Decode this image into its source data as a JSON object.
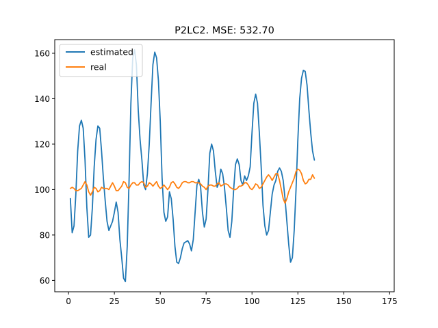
{
  "chart_data": {
    "type": "line",
    "title": "P2LC2. MSE: 532.70",
    "xlabel": "",
    "ylabel": "",
    "xlim": [
      -7.5,
      177.5
    ],
    "ylim": [
      55,
      166
    ],
    "xticks": [
      0,
      25,
      50,
      75,
      100,
      125,
      150,
      175
    ],
    "yticks": [
      60,
      80,
      100,
      120,
      140,
      160
    ],
    "grid": false,
    "legend_position": "upper left",
    "series": [
      {
        "name": "estimated",
        "color": "#1f77b4",
        "points": [
          [
            1,
            96
          ],
          [
            2,
            81
          ],
          [
            3,
            84
          ],
          [
            4,
            98
          ],
          [
            5,
            117
          ],
          [
            6,
            128
          ],
          [
            7,
            130.5
          ],
          [
            8,
            127
          ],
          [
            9,
            113
          ],
          [
            10,
            92
          ],
          [
            11,
            79
          ],
          [
            12,
            80
          ],
          [
            13,
            92
          ],
          [
            14,
            110
          ],
          [
            15,
            122
          ],
          [
            16,
            128
          ],
          [
            17,
            127
          ],
          [
            18,
            117
          ],
          [
            19,
            105
          ],
          [
            20,
            95
          ],
          [
            21,
            86
          ],
          [
            22,
            82
          ],
          [
            23,
            84
          ],
          [
            24,
            86
          ],
          [
            25,
            90
          ],
          [
            26,
            94.5
          ],
          [
            27,
            90
          ],
          [
            28,
            78
          ],
          [
            29,
            70
          ],
          [
            30,
            61
          ],
          [
            31,
            59.5
          ],
          [
            32,
            75
          ],
          [
            33,
            104
          ],
          [
            34,
            138
          ],
          [
            35,
            158
          ],
          [
            36,
            161.5
          ],
          [
            37,
            155
          ],
          [
            38,
            135
          ],
          [
            39,
            122
          ],
          [
            40,
            113
          ],
          [
            41,
            102
          ],
          [
            42,
            100
          ],
          [
            43,
            107
          ],
          [
            44,
            120
          ],
          [
            45,
            138
          ],
          [
            46,
            155
          ],
          [
            47,
            160.5
          ],
          [
            48,
            158
          ],
          [
            49,
            148
          ],
          [
            50,
            130
          ],
          [
            51,
            105
          ],
          [
            52,
            90
          ],
          [
            53,
            86
          ],
          [
            54,
            88
          ],
          [
            55,
            99
          ],
          [
            56,
            96
          ],
          [
            57,
            87
          ],
          [
            58,
            75
          ],
          [
            59,
            68
          ],
          [
            60,
            67.5
          ],
          [
            61,
            70
          ],
          [
            62,
            74
          ],
          [
            63,
            76.5
          ],
          [
            64,
            77
          ],
          [
            65,
            77.5
          ],
          [
            66,
            76
          ],
          [
            67,
            73
          ],
          [
            68,
            78
          ],
          [
            69,
            90
          ],
          [
            70,
            102
          ],
          [
            71,
            104.5
          ],
          [
            72,
            101
          ],
          [
            73,
            90
          ],
          [
            74,
            83.5
          ],
          [
            75,
            87
          ],
          [
            76,
            100
          ],
          [
            77,
            116
          ],
          [
            78,
            120
          ],
          [
            79,
            117
          ],
          [
            80,
            108
          ],
          [
            81,
            101
          ],
          [
            82,
            103
          ],
          [
            83,
            109
          ],
          [
            84,
            107
          ],
          [
            85,
            101
          ],
          [
            86,
            92
          ],
          [
            87,
            82
          ],
          [
            88,
            79
          ],
          [
            89,
            86
          ],
          [
            90,
            100
          ],
          [
            91,
            111
          ],
          [
            92,
            113.5
          ],
          [
            93,
            111
          ],
          [
            94,
            104
          ],
          [
            95,
            102
          ],
          [
            96,
            106
          ],
          [
            97,
            104
          ],
          [
            98,
            106
          ],
          [
            99,
            110
          ],
          [
            100,
            125
          ],
          [
            101,
            138
          ],
          [
            102,
            142
          ],
          [
            103,
            138
          ],
          [
            104,
            125
          ],
          [
            105,
            110
          ],
          [
            106,
            93
          ],
          [
            107,
            84
          ],
          [
            108,
            80
          ],
          [
            109,
            82
          ],
          [
            110,
            90
          ],
          [
            111,
            98
          ],
          [
            112,
            102
          ],
          [
            113,
            104
          ],
          [
            114,
            108
          ],
          [
            115,
            109.5
          ],
          [
            116,
            108
          ],
          [
            117,
            104
          ],
          [
            118,
            96
          ],
          [
            119,
            86
          ],
          [
            120,
            76
          ],
          [
            121,
            68
          ],
          [
            122,
            70
          ],
          [
            123,
            82
          ],
          [
            124,
            100
          ],
          [
            125,
            122
          ],
          [
            126,
            140
          ],
          [
            127,
            149
          ],
          [
            128,
            152.5
          ],
          [
            129,
            152
          ],
          [
            130,
            146
          ],
          [
            131,
            135
          ],
          [
            132,
            125
          ],
          [
            133,
            117
          ],
          [
            134,
            113
          ]
        ]
      },
      {
        "name": "real",
        "color": "#ff7f0e",
        "points": [
          [
            1,
            100.5
          ],
          [
            2,
            101
          ],
          [
            3,
            100.5
          ],
          [
            4,
            99.5
          ],
          [
            5,
            99.5
          ],
          [
            6,
            100
          ],
          [
            7,
            100.5
          ],
          [
            8,
            102
          ],
          [
            9,
            103.5
          ],
          [
            10,
            102
          ],
          [
            11,
            99
          ],
          [
            12,
            97.5
          ],
          [
            13,
            99
          ],
          [
            14,
            101
          ],
          [
            15,
            100.5
          ],
          [
            16,
            99
          ],
          [
            17,
            99.5
          ],
          [
            18,
            101
          ],
          [
            19,
            100.5
          ],
          [
            20,
            100.5
          ],
          [
            21,
            100.5
          ],
          [
            22,
            100
          ],
          [
            23,
            101.5
          ],
          [
            24,
            103
          ],
          [
            25,
            101.5
          ],
          [
            26,
            99.5
          ],
          [
            27,
            99.5
          ],
          [
            28,
            100.5
          ],
          [
            29,
            101.5
          ],
          [
            30,
            103.5
          ],
          [
            31,
            103
          ],
          [
            32,
            101
          ],
          [
            33,
            100.5
          ],
          [
            34,
            102
          ],
          [
            35,
            103
          ],
          [
            36,
            103
          ],
          [
            37,
            102
          ],
          [
            38,
            102
          ],
          [
            39,
            103
          ],
          [
            40,
            103.5
          ],
          [
            41,
            103
          ],
          [
            42,
            101
          ],
          [
            43,
            101.5
          ],
          [
            44,
            103
          ],
          [
            45,
            102.5
          ],
          [
            46,
            101.5
          ],
          [
            47,
            102.5
          ],
          [
            48,
            103.5
          ],
          [
            49,
            101.5
          ],
          [
            50,
            100.5
          ],
          [
            51,
            101
          ],
          [
            52,
            102
          ],
          [
            53,
            101
          ],
          [
            54,
            100
          ],
          [
            55,
            101
          ],
          [
            56,
            103
          ],
          [
            57,
            103.5
          ],
          [
            58,
            102.5
          ],
          [
            59,
            101
          ],
          [
            60,
            100.5
          ],
          [
            61,
            101.5
          ],
          [
            62,
            103
          ],
          [
            63,
            103.5
          ],
          [
            64,
            103.5
          ],
          [
            65,
            103
          ],
          [
            66,
            103
          ],
          [
            67,
            103.5
          ],
          [
            68,
            103.5
          ],
          [
            69,
            103
          ],
          [
            70,
            103
          ],
          [
            71,
            103
          ],
          [
            72,
            102.5
          ],
          [
            73,
            101.5
          ],
          [
            74,
            101
          ],
          [
            75,
            100
          ],
          [
            76,
            101.5
          ],
          [
            77,
            102
          ],
          [
            78,
            102
          ],
          [
            79,
            101.5
          ],
          [
            80,
            101.5
          ],
          [
            81,
            102.5
          ],
          [
            82,
            103
          ],
          [
            83,
            101.5
          ],
          [
            84,
            102
          ],
          [
            85,
            102.5
          ],
          [
            86,
            102.5
          ],
          [
            87,
            102
          ],
          [
            88,
            101
          ],
          [
            89,
            100.5
          ],
          [
            90,
            100
          ],
          [
            91,
            100
          ],
          [
            92,
            100.5
          ],
          [
            93,
            101.5
          ],
          [
            94,
            101.5
          ],
          [
            95,
            102
          ],
          [
            96,
            103
          ],
          [
            97,
            103
          ],
          [
            98,
            102
          ],
          [
            99,
            100.5
          ],
          [
            100,
            100
          ],
          [
            101,
            101
          ],
          [
            102,
            102.5
          ],
          [
            103,
            102
          ],
          [
            104,
            100.5
          ],
          [
            105,
            101
          ],
          [
            106,
            102.5
          ],
          [
            107,
            104
          ],
          [
            108,
            105.5
          ],
          [
            109,
            106.5
          ],
          [
            110,
            105.5
          ],
          [
            111,
            104
          ],
          [
            112,
            105.5
          ],
          [
            113,
            107
          ],
          [
            114,
            107
          ],
          [
            115,
            104
          ],
          [
            116,
            100
          ],
          [
            117,
            96
          ],
          [
            118,
            94
          ],
          [
            119,
            96
          ],
          [
            120,
            99
          ],
          [
            121,
            101
          ],
          [
            122,
            103
          ],
          [
            123,
            105
          ],
          [
            124,
            108
          ],
          [
            125,
            109
          ],
          [
            126,
            108.5
          ],
          [
            127,
            107
          ],
          [
            128,
            104
          ],
          [
            129,
            102.5
          ],
          [
            130,
            103
          ],
          [
            131,
            104.5
          ],
          [
            132,
            104.5
          ],
          [
            133,
            106.5
          ],
          [
            134,
            105
          ]
        ]
      }
    ]
  }
}
